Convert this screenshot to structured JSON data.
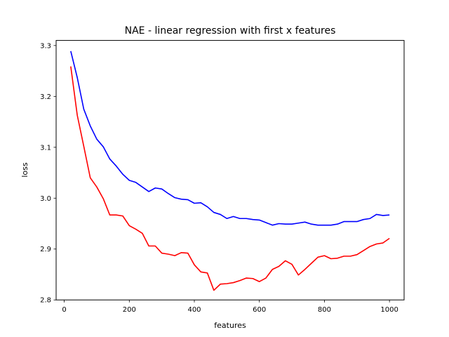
{
  "chart_data": {
    "type": "line",
    "title": "NAE - linear regression with first x features",
    "xlabel": "features",
    "ylabel": "loss",
    "xlim": [
      -25,
      1045
    ],
    "ylim": [
      2.8,
      3.31
    ],
    "xticks": [
      0,
      200,
      400,
      600,
      800,
      1000
    ],
    "yticks": [
      2.8,
      2.9,
      3.0,
      3.1,
      3.2,
      3.3
    ],
    "ytick_labels": [
      "2.8",
      "2.9",
      "3.0",
      "3.1",
      "3.2",
      "3.3"
    ],
    "grid": false,
    "x": [
      20,
      40,
      60,
      80,
      100,
      120,
      140,
      160,
      180,
      200,
      220,
      240,
      260,
      280,
      300,
      320,
      340,
      360,
      380,
      400,
      420,
      440,
      460,
      480,
      500,
      520,
      540,
      560,
      580,
      600,
      620,
      640,
      660,
      680,
      700,
      720,
      740,
      760,
      780,
      800,
      820,
      840,
      860,
      880,
      900,
      920,
      940,
      960,
      980,
      1000
    ],
    "series": [
      {
        "color": "#0000ff",
        "values": [
          3.289,
          3.237,
          3.175,
          3.142,
          3.116,
          3.101,
          3.077,
          3.063,
          3.047,
          3.035,
          3.031,
          3.022,
          3.013,
          3.02,
          3.018,
          3.009,
          3.001,
          2.998,
          2.997,
          2.99,
          2.991,
          2.983,
          2.972,
          2.968,
          2.96,
          2.964,
          2.96,
          2.96,
          2.958,
          2.957,
          2.952,
          2.947,
          2.95,
          2.949,
          2.949,
          2.951,
          2.953,
          2.949,
          2.947,
          2.947,
          2.947,
          2.949,
          2.954,
          2.954,
          2.954,
          2.958,
          2.96,
          2.968,
          2.966,
          2.967
        ]
      },
      {
        "color": "#ff0000",
        "values": [
          3.259,
          3.163,
          3.102,
          3.04,
          3.022,
          2.999,
          2.967,
          2.967,
          2.965,
          2.946,
          2.939,
          2.931,
          2.906,
          2.906,
          2.892,
          2.89,
          2.887,
          2.893,
          2.892,
          2.869,
          2.855,
          2.853,
          2.819,
          2.831,
          2.832,
          2.834,
          2.838,
          2.843,
          2.842,
          2.836,
          2.843,
          2.86,
          2.866,
          2.877,
          2.87,
          2.849,
          2.86,
          2.872,
          2.884,
          2.887,
          2.881,
          2.882,
          2.886,
          2.886,
          2.889,
          2.897,
          2.905,
          2.91,
          2.912,
          2.921
        ]
      }
    ]
  }
}
